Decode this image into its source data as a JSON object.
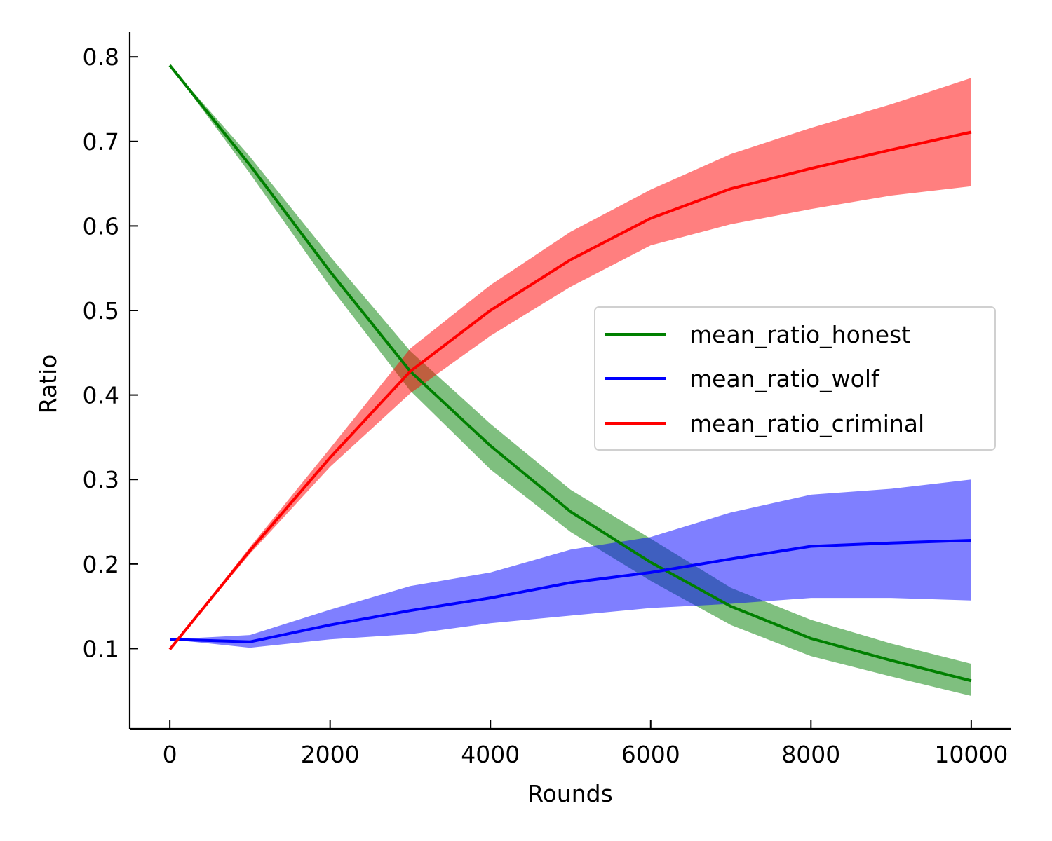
{
  "chart_data": {
    "type": "line",
    "title": "",
    "xlabel": "Rounds",
    "ylabel": "Ratio",
    "xlim": [
      -500,
      10500
    ],
    "ylim": [
      0.005,
      0.83
    ],
    "x_ticks": [
      0,
      2000,
      4000,
      6000,
      8000,
      10000
    ],
    "x_tick_labels": [
      "0",
      "2000",
      "4000",
      "6000",
      "8000",
      "10000"
    ],
    "y_ticks": [
      0.1,
      0.2,
      0.3,
      0.4,
      0.5,
      0.6,
      0.7,
      0.8
    ],
    "y_tick_labels": [
      "0.1",
      "0.2",
      "0.3",
      "0.4",
      "0.5",
      "0.6",
      "0.7",
      "0.8"
    ],
    "grid": false,
    "legend_position": "center-right",
    "x": [
      0,
      1000,
      2000,
      3000,
      4000,
      5000,
      6000,
      7000,
      8000,
      9000,
      10000
    ],
    "series": [
      {
        "name": "mean_ratio_honest",
        "color": "#008000",
        "values": [
          0.79,
          0.672,
          0.546,
          0.428,
          0.34,
          0.262,
          0.202,
          0.15,
          0.112,
          0.086,
          0.062
        ],
        "lower": [
          0.79,
          0.662,
          0.528,
          0.405,
          0.312,
          0.238,
          0.18,
          0.128,
          0.091,
          0.067,
          0.044
        ],
        "upper": [
          0.79,
          0.682,
          0.564,
          0.452,
          0.366,
          0.288,
          0.23,
          0.172,
          0.134,
          0.106,
          0.082
        ]
      },
      {
        "name": "mean_ratio_wolf",
        "color": "#0000ff",
        "values": [
          0.111,
          0.108,
          0.128,
          0.145,
          0.16,
          0.178,
          0.19,
          0.206,
          0.221,
          0.225,
          0.228
        ],
        "lower": [
          0.111,
          0.101,
          0.111,
          0.117,
          0.13,
          0.139,
          0.148,
          0.153,
          0.16,
          0.16,
          0.157
        ],
        "upper": [
          0.111,
          0.116,
          0.146,
          0.174,
          0.19,
          0.217,
          0.232,
          0.261,
          0.282,
          0.289,
          0.3
        ]
      },
      {
        "name": "mean_ratio_criminal",
        "color": "#ff0000",
        "values": [
          0.099,
          0.216,
          0.326,
          0.428,
          0.5,
          0.56,
          0.609,
          0.644,
          0.668,
          0.69,
          0.711
        ],
        "lower": [
          0.099,
          0.212,
          0.315,
          0.402,
          0.47,
          0.528,
          0.577,
          0.602,
          0.62,
          0.636,
          0.647
        ],
        "upper": [
          0.099,
          0.22,
          0.337,
          0.455,
          0.53,
          0.593,
          0.643,
          0.685,
          0.716,
          0.744,
          0.775
        ]
      }
    ]
  }
}
